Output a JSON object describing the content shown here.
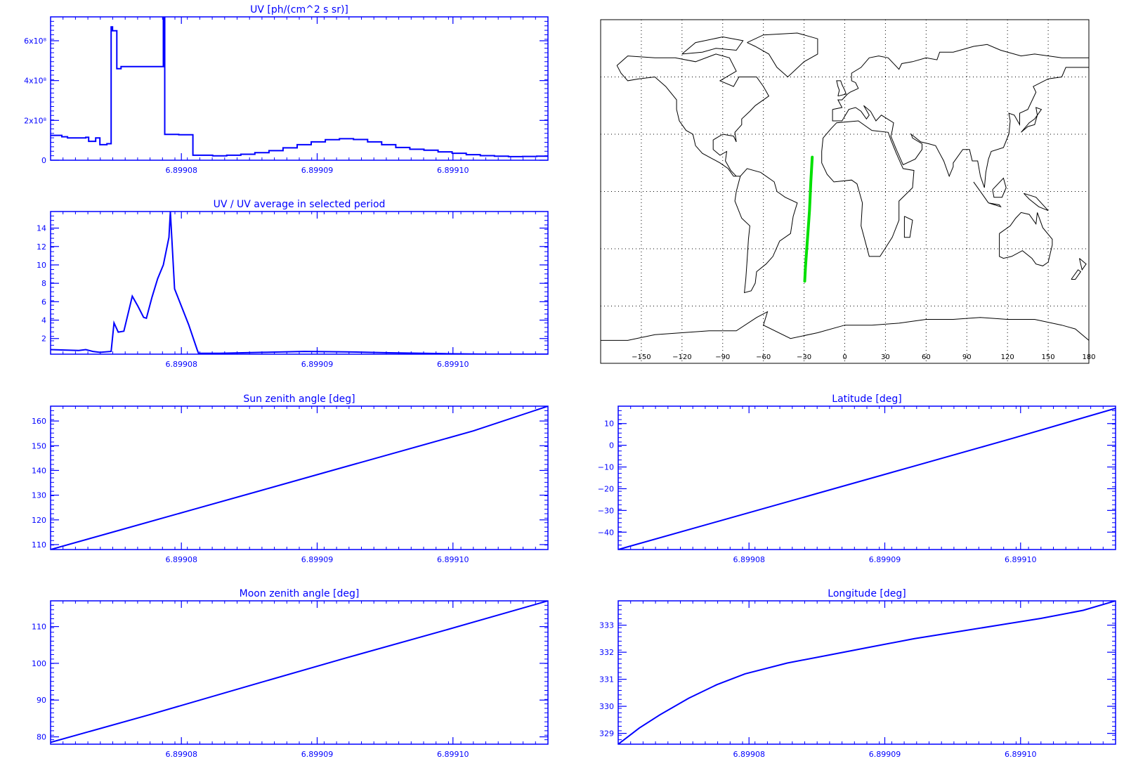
{
  "colors": {
    "axis": "#0000ff",
    "series": "#0000ff",
    "track": "#00e000",
    "coast": "#000000",
    "grid": "#000000"
  },
  "chart_data": [
    {
      "id": "uv",
      "type": "line",
      "title": "UV [ph/(cm^2 s sr)]",
      "xlim": [
        6.89071,
        6.891063
      ],
      "ylim": [
        0,
        720000000
      ],
      "xticks": [
        "6.89908",
        "6.89909",
        "6.89910"
      ],
      "yticks": [
        {
          "v": 0,
          "l": "0"
        },
        {
          "v": 200000000,
          "l": "2x10⁸"
        },
        {
          "v": 400000000,
          "l": "4x10⁸"
        },
        {
          "v": 600000000,
          "l": "6x10⁸"
        }
      ],
      "step": true,
      "x": [
        6.89071,
        6.890718,
        6.890722,
        6.890735,
        6.890737,
        6.890742,
        6.890745,
        6.89075,
        6.890753,
        6.890754,
        6.890757,
        6.89076,
        6.89079,
        6.890791,
        6.890801,
        6.890811,
        6.890825,
        6.890835,
        6.890845,
        6.890855,
        6.890865,
        6.890875,
        6.890885,
        6.890895,
        6.890905,
        6.890915,
        6.890925,
        6.890935,
        6.890945,
        6.890955,
        6.890965,
        6.890975,
        6.890985,
        6.890995,
        6.891005,
        6.891015,
        6.891025,
        6.891035,
        6.891045,
        6.891055,
        6.891063
      ],
      "y": [
        125000000,
        118000000,
        112000000,
        115000000,
        95000000,
        112000000,
        78000000,
        83000000,
        670000000,
        650000000,
        460000000,
        470000000,
        720000000,
        130000000,
        128000000,
        25000000,
        22000000,
        25000000,
        30000000,
        38000000,
        48000000,
        62000000,
        78000000,
        92000000,
        103000000,
        108000000,
        104000000,
        92000000,
        78000000,
        64000000,
        55000000,
        50000000,
        42000000,
        35000000,
        28000000,
        23000000,
        20000000,
        18000000,
        19000000,
        20000000,
        21000000
      ]
    },
    {
      "id": "ratio",
      "type": "line",
      "title": "UV / UV average in selected period",
      "xlim": [
        6.89071,
        6.891063
      ],
      "ylim": [
        0.3,
        15.8
      ],
      "xticks": [
        "6.89908",
        "6.89909",
        "6.89910"
      ],
      "yticks": [
        {
          "v": 2,
          "l": "2"
        },
        {
          "v": 4,
          "l": "4"
        },
        {
          "v": 6,
          "l": "6"
        },
        {
          "v": 8,
          "l": "8"
        },
        {
          "v": 10,
          "l": "10"
        },
        {
          "v": 12,
          "l": "12"
        },
        {
          "v": 14,
          "l": "14"
        }
      ],
      "x": [
        6.89071,
        6.89073,
        6.890735,
        6.89074,
        6.890745,
        6.890753,
        6.890755,
        6.890758,
        6.890762,
        6.890768,
        6.890772,
        6.890776,
        6.890778,
        6.890782,
        6.890786,
        6.89079,
        6.890794,
        6.890795,
        6.890798,
        6.890808,
        6.890814,
        6.890815,
        6.89083,
        6.89086,
        6.89089,
        6.89092,
        6.89095,
        6.89099,
        6.89102,
        6.891063
      ],
      "y": [
        0.8,
        0.7,
        0.8,
        0.6,
        0.5,
        0.6,
        3.7,
        2.7,
        2.8,
        6.6,
        5.5,
        4.3,
        4.2,
        6.5,
        8.5,
        10.0,
        13.0,
        15.8,
        7.4,
        3.5,
        0.8,
        0.4,
        0.4,
        0.5,
        0.6,
        0.55,
        0.45,
        0.35,
        0.3,
        0.3
      ]
    },
    {
      "id": "sza",
      "type": "line",
      "title": "Sun zenith angle [deg]",
      "xlim": [
        6.89071,
        6.891063
      ],
      "ylim": [
        108,
        166
      ],
      "xticks": [
        "6.89908",
        "6.89909",
        "6.89910"
      ],
      "yticks": [
        {
          "v": 110,
          "l": "110"
        },
        {
          "v": 120,
          "l": "120"
        },
        {
          "v": 130,
          "l": "130"
        },
        {
          "v": 140,
          "l": "140"
        },
        {
          "v": 150,
          "l": "150"
        },
        {
          "v": 160,
          "l": "160"
        }
      ],
      "x": [
        6.89071,
        6.89076,
        6.89081,
        6.89086,
        6.89091,
        6.89096,
        6.89101,
        6.891063
      ],
      "y": [
        108,
        116,
        124,
        132,
        140,
        148,
        156,
        166
      ]
    },
    {
      "id": "lat",
      "type": "line",
      "title": "Latitude [deg]",
      "xlim": [
        6.89071,
        6.891063
      ],
      "ylim": [
        -48,
        18
      ],
      "xticks": [
        "6.89908",
        "6.89909",
        "6.89910"
      ],
      "yticks": [
        {
          "v": -40,
          "l": "−40"
        },
        {
          "v": -30,
          "l": "−30"
        },
        {
          "v": -20,
          "l": "−20"
        },
        {
          "v": -10,
          "l": "−10"
        },
        {
          "v": 0,
          "l": "0"
        },
        {
          "v": 10,
          "l": "10"
        }
      ],
      "x": [
        6.89071,
        6.89078,
        6.89085,
        6.89092,
        6.89099,
        6.891063
      ],
      "y": [
        -48,
        -35.2,
        -22.4,
        -9.6,
        3.2,
        17
      ]
    },
    {
      "id": "mza",
      "type": "line",
      "title": "Moon zenith angle [deg]",
      "xlim": [
        6.89071,
        6.891063
      ],
      "ylim": [
        78,
        117
      ],
      "xticks": [
        "6.89908",
        "6.89909",
        "6.89910"
      ],
      "yticks": [
        {
          "v": 80,
          "l": "80"
        },
        {
          "v": 90,
          "l": "90"
        },
        {
          "v": 100,
          "l": "100"
        },
        {
          "v": 110,
          "l": "110"
        }
      ],
      "x": [
        6.89071,
        6.89078,
        6.89085,
        6.89092,
        6.89099,
        6.891063
      ],
      "y": [
        78.5,
        86,
        93.8,
        101.5,
        109,
        117
      ]
    },
    {
      "id": "lon",
      "type": "line",
      "title": "Longitude [deg]",
      "xlim": [
        6.89071,
        6.891063
      ],
      "ylim": [
        328.6,
        333.9
      ],
      "xticks": [
        "6.89908",
        "6.89909",
        "6.89910"
      ],
      "yticks": [
        {
          "v": 329,
          "l": "329"
        },
        {
          "v": 330,
          "l": "330"
        },
        {
          "v": 331,
          "l": "331"
        },
        {
          "v": 332,
          "l": "332"
        },
        {
          "v": 333,
          "l": "333"
        }
      ],
      "x": [
        6.89071,
        6.890725,
        6.89074,
        6.89076,
        6.89078,
        6.8908,
        6.89083,
        6.89086,
        6.89089,
        6.89092,
        6.89095,
        6.89098,
        6.89101,
        6.89104,
        6.891063
      ],
      "y": [
        328.6,
        329.2,
        329.7,
        330.3,
        330.8,
        331.2,
        331.6,
        331.9,
        332.2,
        332.5,
        332.75,
        333.0,
        333.25,
        333.55,
        333.9
      ]
    }
  ],
  "map": {
    "xlim": [
      -180,
      180
    ],
    "ylim": [
      -90,
      90
    ],
    "xticks": [
      "−150",
      "−120",
      "−90",
      "−60",
      "−30",
      "0",
      "30",
      "60",
      "90",
      "120",
      "150",
      "180"
    ],
    "tick_values": [
      -150,
      -120,
      -90,
      -60,
      -30,
      0,
      30,
      60,
      90,
      120,
      150,
      180
    ],
    "grid_lon": [
      -150,
      -120,
      -90,
      -60,
      -30,
      0,
      30,
      60,
      90,
      120,
      150
    ],
    "grid_lat": [
      -60,
      -30,
      0,
      30,
      60
    ],
    "track": [
      [
        -24,
        18
      ],
      [
        -25,
        5
      ],
      [
        -26,
        -10
      ],
      [
        -27,
        -20
      ],
      [
        -28,
        -30
      ],
      [
        -29,
        -40
      ],
      [
        -29.5,
        -47
      ]
    ]
  }
}
